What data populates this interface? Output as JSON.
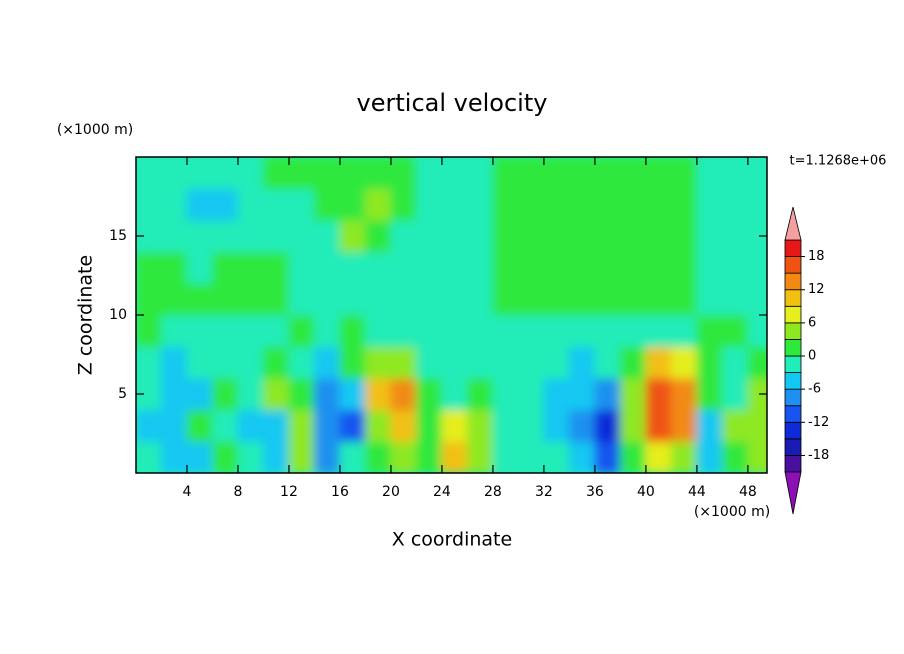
{
  "chart_data": {
    "type": "contour",
    "title": "vertical velocity",
    "xlabel": "X coordinate",
    "ylabel": "Z coordinate",
    "x_unit": "(×1000 m)",
    "y_unit": "(×1000 m)",
    "time_label": "t=1.1268e+06",
    "xlim": [
      0,
      49.5
    ],
    "ylim": [
      0,
      20
    ],
    "xticks": [
      4,
      8,
      12,
      16,
      20,
      24,
      28,
      32,
      36,
      40,
      44,
      48
    ],
    "yticks": [
      5,
      10,
      15
    ],
    "x": [
      1,
      3,
      5,
      7,
      9,
      11,
      13,
      15,
      17,
      19,
      21,
      23,
      25,
      27,
      29,
      31,
      33,
      35,
      37,
      39,
      41,
      43,
      45,
      47,
      49
    ],
    "z": [
      1,
      3,
      5,
      7,
      9,
      11,
      13,
      15,
      17,
      19
    ],
    "values": [
      [
        -1,
        -4,
        -4,
        1,
        -1,
        -4,
        4,
        -7,
        -1,
        1,
        4,
        1,
        10,
        4,
        -1,
        -1,
        -1,
        -4,
        -10,
        1,
        7,
        4,
        -4,
        1,
        4
      ],
      [
        -4,
        -4,
        1,
        -1,
        -4,
        -4,
        4,
        -7,
        -10,
        4,
        10,
        1,
        7,
        4,
        -1,
        -1,
        -4,
        -7,
        -13,
        4,
        16,
        13,
        -4,
        4,
        4
      ],
      [
        -1,
        -4,
        -4,
        1,
        -1,
        4,
        1,
        -7,
        -4,
        10,
        13,
        1,
        -1,
        1,
        -1,
        -1,
        -4,
        -4,
        -7,
        4,
        16,
        13,
        1,
        -1,
        4
      ],
      [
        -1,
        -4,
        -1,
        -1,
        -1,
        1,
        -1,
        -4,
        1,
        4,
        4,
        -1,
        -1,
        -1,
        -1,
        -1,
        -1,
        -4,
        -1,
        1,
        10,
        7,
        1,
        -1,
        1
      ],
      [
        1,
        -1,
        -1,
        -1,
        -1,
        -1,
        1,
        -1,
        1,
        -1,
        -1,
        -1,
        -1,
        -1,
        -1,
        -1,
        -1,
        -1,
        -1,
        -1,
        -1,
        -1,
        1,
        1,
        -1
      ],
      [
        1,
        1,
        1,
        1,
        1,
        1,
        -1,
        -1,
        -1,
        -1,
        -1,
        -1,
        -1,
        -1,
        1,
        1,
        1,
        1,
        1,
        1,
        1,
        1,
        -1,
        -1,
        -1
      ],
      [
        1,
        1,
        -1,
        1,
        1,
        1,
        -1,
        -1,
        -1,
        -1,
        -1,
        -1,
        -1,
        -1,
        1,
        1,
        1,
        1,
        1,
        1,
        1,
        1,
        -1,
        -1,
        -1
      ],
      [
        -1,
        -1,
        -1,
        -1,
        -1,
        -1,
        -1,
        -1,
        4,
        1,
        -1,
        -1,
        -1,
        -1,
        1,
        1,
        1,
        1,
        1,
        1,
        1,
        1,
        -1,
        -1,
        -1
      ],
      [
        -1,
        -1,
        -4,
        -4,
        -1,
        -1,
        -1,
        1,
        1,
        4,
        1,
        -1,
        -1,
        -1,
        1,
        1,
        1,
        1,
        1,
        1,
        1,
        1,
        -1,
        -1,
        -1
      ],
      [
        -1,
        -1,
        -1,
        -1,
        -1,
        1,
        1,
        1,
        1,
        1,
        1,
        -1,
        -1,
        -1,
        1,
        1,
        1,
        1,
        1,
        1,
        1,
        1,
        -1,
        -1,
        -1
      ]
    ],
    "levels": [
      -21,
      -18,
      -15,
      -12,
      -9,
      -6,
      -3,
      0,
      3,
      6,
      9,
      12,
      15,
      18,
      21
    ],
    "colors": [
      "#8c10b4",
      "#4a0f9c",
      "#1a1ab4",
      "#0f2ad8",
      "#1655f0",
      "#1e90f0",
      "#12c8f2",
      "#22ecb8",
      "#2ee83c",
      "#8ee820",
      "#e6ee1e",
      "#f2c012",
      "#f28a12",
      "#f05212",
      "#e61818",
      "#f4a0a0"
    ],
    "colorbar_ticks": [
      -18,
      -12,
      -6,
      0,
      6,
      12,
      18
    ]
  }
}
